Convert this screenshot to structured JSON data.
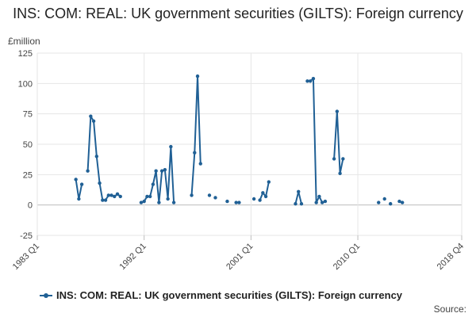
{
  "chart_data": {
    "type": "line",
    "title": "INS: COM: REAL: UK government securities (GILTS): Foreign currency",
    "ylabel": "£million",
    "ylim": [
      -25,
      125
    ],
    "yticks": [
      -25,
      0,
      25,
      50,
      75,
      100,
      125
    ],
    "xlim": [
      1983.0,
      2018.75
    ],
    "xticks": [
      {
        "label": "1983 Q1",
        "value": 1983.0
      },
      {
        "label": "1992 Q1",
        "value": 1992.0
      },
      {
        "label": "2001 Q1",
        "value": 2001.0
      },
      {
        "label": "2010 Q1",
        "value": 2010.0
      },
      {
        "label": "2018 Q4",
        "value": 2018.75
      }
    ],
    "grid": true,
    "legend_position": "bottom",
    "series": [
      {
        "name": "INS: COM: REAL: UK government securities (GILTS): Foreign currency",
        "color": "#206095",
        "segments": [
          [
            [
              1986.25,
              21
            ],
            [
              1986.5,
              5
            ],
            [
              1986.75,
              17
            ]
          ],
          [
            [
              1987.25,
              28
            ],
            [
              1987.5,
              73
            ],
            [
              1987.75,
              69
            ],
            [
              1988.0,
              40
            ],
            [
              1988.25,
              18
            ],
            [
              1988.5,
              4
            ],
            [
              1988.75,
              4
            ],
            [
              1989.0,
              8
            ],
            [
              1989.25,
              8
            ],
            [
              1989.5,
              7
            ],
            [
              1989.75,
              9
            ],
            [
              1990.0,
              7
            ]
          ],
          [
            [
              1991.75,
              2
            ],
            [
              1992.0,
              3
            ],
            [
              1992.25,
              7
            ],
            [
              1992.5,
              7
            ],
            [
              1992.75,
              17
            ],
            [
              1993.0,
              28
            ],
            [
              1993.25,
              2
            ],
            [
              1993.5,
              28
            ],
            [
              1993.75,
              29
            ],
            [
              1994.0,
              5
            ],
            [
              1994.25,
              48
            ],
            [
              1994.5,
              2
            ]
          ],
          [
            [
              1996.0,
              8
            ],
            [
              1996.25,
              43
            ],
            [
              1996.5,
              106
            ],
            [
              1996.75,
              34
            ]
          ],
          [
            [
              1997.5,
              8
            ]
          ],
          [
            [
              1998.0,
              6
            ]
          ],
          [
            [
              1999.0,
              3
            ]
          ],
          [
            [
              1999.75,
              2
            ],
            [
              2000.0,
              2
            ]
          ],
          [
            [
              2001.25,
              5
            ]
          ],
          [
            [
              2001.75,
              4
            ],
            [
              2002.0,
              10
            ],
            [
              2002.25,
              7
            ],
            [
              2002.5,
              19
            ]
          ],
          [
            [
              2004.75,
              1
            ],
            [
              2005.0,
              11
            ],
            [
              2005.25,
              1
            ]
          ],
          [
            [
              2005.75,
              102
            ],
            [
              2006.0,
              102
            ],
            [
              2006.25,
              104
            ],
            [
              2006.5,
              2
            ],
            [
              2006.75,
              7
            ],
            [
              2007.0,
              2
            ],
            [
              2007.25,
              3
            ]
          ],
          [
            [
              2008.0,
              38
            ],
            [
              2008.25,
              77
            ],
            [
              2008.5,
              26
            ],
            [
              2008.75,
              38
            ]
          ],
          [
            [
              2011.75,
              2
            ]
          ],
          [
            [
              2012.25,
              5
            ]
          ],
          [
            [
              2012.75,
              1
            ]
          ],
          [
            [
              2013.5,
              3
            ],
            [
              2013.75,
              2
            ]
          ]
        ]
      }
    ]
  },
  "footer": {
    "source_label": "Source:"
  }
}
